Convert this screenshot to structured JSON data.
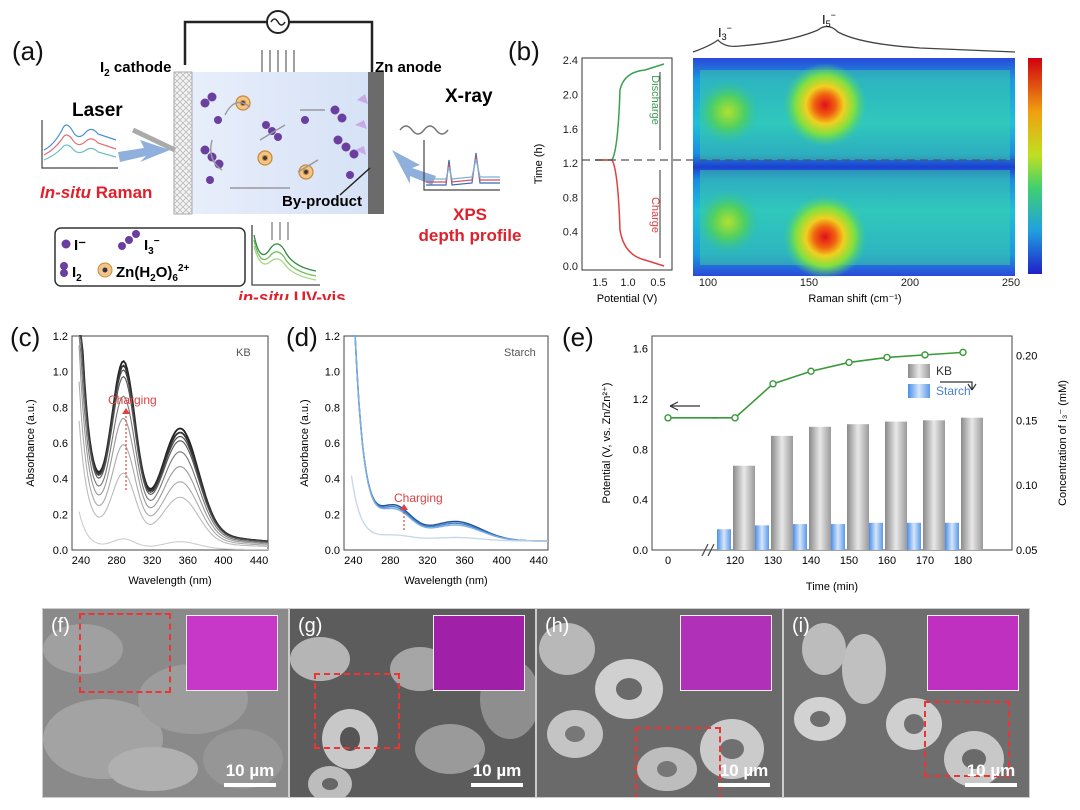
{
  "panel_a": {
    "label": "(a)",
    "cathode": "I",
    "cathode_sub": "2",
    "cathode_rest": " cathode",
    "anode": "Zn anode",
    "laser": "Laser",
    "xray": "X-ray",
    "byproduct": "By-product",
    "raman_em": "In-situ",
    "raman_rest": " Raman",
    "uv_em": "in-situ",
    "uv_rest": " UV-vis",
    "xps_line1": "XPS",
    "xps_line2": "depth profile",
    "legend": {
      "iodide": "I⁻",
      "triiodide": "I",
      "triiodide_sub": "3",
      "triiodide_sup": "−",
      "iodine": "I",
      "iodine_sub": "2",
      "zn_complex": "Zn(H",
      "zn_sub2": "2",
      "zn_mid": "O)",
      "zn_sub6": "6",
      "zn_sup": "2+"
    }
  },
  "panel_b": {
    "label": "(b)",
    "time_axis": "Time (h)",
    "potential_axis": "Potential (V)",
    "raman_axis": "Raman shift (cm⁻¹)",
    "discharge": "Discharge",
    "charge": "Charge",
    "peak1": "I",
    "peak1_sub": "3",
    "peak1_sup": "−",
    "peak2": "I",
    "peak2_sub": "5",
    "peak2_sup": "−",
    "time_ticks": [
      "0.0",
      "0.4",
      "0.8",
      "1.2",
      "1.6",
      "2.0",
      "2.4"
    ],
    "pot_ticks": [
      "1.5",
      "1.0",
      "0.5"
    ],
    "raman_ticks": [
      "100",
      "150",
      "200",
      "250"
    ]
  },
  "panel_c": {
    "label": "(c)",
    "tag": "KB",
    "charging": "Charging",
    "xlabel": "Wavelength (nm)",
    "ylabel": "Absorbance (a.u.)"
  },
  "panel_d": {
    "label": "(d)",
    "tag": "Starch",
    "charging": "Charging",
    "xlabel": "Wavelength (nm)",
    "ylabel": "Absorbance (a.u.)"
  },
  "panel_e": {
    "label": "(e)",
    "legend_kb": "KB",
    "legend_starch": "Starch",
    "xlabel": "Time (min)",
    "ylabel_left": "Potential (V, vs. Zn/Zn²⁺)",
    "ylabel_right": "Concentration of I₃⁻ (mM)"
  },
  "chart_data": [
    {
      "type": "line",
      "panel": "c",
      "x_ticks": [
        "240",
        "280",
        "320",
        "360",
        "400",
        "440"
      ],
      "y_ticks": [
        "0.0",
        "0.2",
        "0.4",
        "0.6",
        "0.8",
        "1.0",
        "1.2"
      ],
      "xlim": [
        230,
        450
      ],
      "ylim": [
        0,
        1.2
      ],
      "peaks_nm": [
        288,
        352
      ],
      "series_peak_heights": [
        {
          "p288": 0.86,
          "p352": 0.57
        },
        {
          "p288": 0.84,
          "p352": 0.55
        },
        {
          "p288": 0.82,
          "p352": 0.53
        },
        {
          "p288": 0.79,
          "p352": 0.51
        },
        {
          "p288": 0.7,
          "p352": 0.46
        },
        {
          "p288": 0.6,
          "p352": 0.39
        },
        {
          "p288": 0.48,
          "p352": 0.32
        },
        {
          "p288": 0.35,
          "p352": 0.25
        },
        {
          "p288": 0.05,
          "p352": 0.04
        }
      ]
    },
    {
      "type": "line",
      "panel": "d",
      "x_ticks": [
        "240",
        "280",
        "320",
        "360",
        "400",
        "440"
      ],
      "y_ticks": [
        "0.0",
        "0.2",
        "0.4",
        "0.6",
        "0.8",
        "1.0",
        "1.2"
      ],
      "xlim": [
        230,
        450
      ],
      "ylim": [
        0,
        1.2
      ],
      "series_peak_heights": [
        {
          "p285": 0.18,
          "p350": 0.11
        },
        {
          "p285": 0.17,
          "p350": 0.1
        },
        {
          "p285": 0.16,
          "p350": 0.09
        },
        {
          "p285": 0.03,
          "p350": 0.02
        }
      ]
    },
    {
      "type": "bar",
      "panel": "e",
      "x_ticks": [
        "0",
        "120",
        "130",
        "140",
        "150",
        "160",
        "170",
        "180"
      ],
      "categories": [
        "120",
        "130",
        "140",
        "150",
        "160",
        "170",
        "180"
      ],
      "y_left_ticks": [
        "0.0",
        "0.4",
        "0.8",
        "1.2",
        "1.6"
      ],
      "y_left_lim": [
        0,
        1.7
      ],
      "y_right_ticks": [
        "0.05",
        "0.10",
        "0.15",
        "0.20"
      ],
      "y_right_lim": [
        0.05,
        0.215
      ],
      "series": [
        {
          "name": "KB",
          "axis": "right",
          "values": [
            0.115,
            0.138,
            0.145,
            0.147,
            0.149,
            0.15,
            0.152
          ]
        },
        {
          "name": "Starch",
          "axis": "right",
          "values": [
            0.066,
            0.069,
            0.07,
            0.07,
            0.071,
            0.071,
            0.071
          ]
        }
      ],
      "potential_line": {
        "axis": "left",
        "x": [
          0,
          120,
          130,
          140,
          150,
          160,
          170,
          180
        ],
        "y": [
          1.05,
          1.05,
          1.32,
          1.42,
          1.49,
          1.53,
          1.55,
          1.57
        ]
      }
    }
  ],
  "sem": [
    {
      "label": "(f)",
      "scale": "10 µm"
    },
    {
      "label": "(g)",
      "scale": "10 µm"
    },
    {
      "label": "(h)",
      "scale": "10 µm"
    },
    {
      "label": "(i)",
      "scale": "10 µm"
    }
  ]
}
